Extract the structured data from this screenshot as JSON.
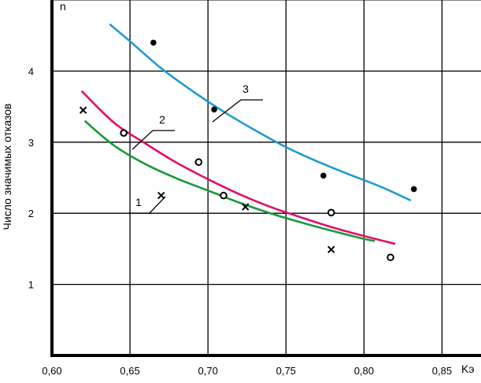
{
  "chart_data": {
    "type": "scatter",
    "title": "",
    "xlabel": "Kэ",
    "ylabel": "Число значимых отказов",
    "y_unit_label": "n",
    "xlim": [
      0.6,
      0.875
    ],
    "ylim": [
      0,
      5.0
    ],
    "x_ticks": [
      {
        "value": 0.6,
        "label": "0,60"
      },
      {
        "value": 0.65,
        "label": "0,65"
      },
      {
        "value": 0.7,
        "label": "0,70"
      },
      {
        "value": 0.75,
        "label": "0,75"
      },
      {
        "value": 0.8,
        "label": "0,80"
      },
      {
        "value": 0.85,
        "label": "0,85"
      }
    ],
    "y_ticks": [
      {
        "value": 1,
        "label": "1"
      },
      {
        "value": 2,
        "label": "2"
      },
      {
        "value": 3,
        "label": "3"
      },
      {
        "value": 4,
        "label": "4"
      }
    ],
    "grid": true,
    "points": [
      {
        "marker": "cross",
        "data": [
          [
            0.62,
            3.45
          ],
          [
            0.67,
            2.25
          ],
          [
            0.724,
            2.09
          ],
          [
            0.779,
            1.49
          ]
        ]
      },
      {
        "marker": "circle",
        "data": [
          [
            0.646,
            3.13
          ],
          [
            0.694,
            2.72
          ],
          [
            0.71,
            2.25
          ],
          [
            0.779,
            2.01
          ],
          [
            0.817,
            1.38
          ]
        ]
      },
      {
        "marker": "dot",
        "data": [
          [
            0.665,
            4.4
          ],
          [
            0.704,
            3.46
          ],
          [
            0.774,
            2.53
          ],
          [
            0.832,
            2.34
          ]
        ]
      }
    ],
    "series": [
      {
        "label": "1",
        "color": "#1a9a3a",
        "x": [
          0.621,
          0.64,
          0.66,
          0.68,
          0.7,
          0.72,
          0.74,
          0.76,
          0.78,
          0.8,
          0.807
        ],
        "y": [
          3.3,
          2.95,
          2.69,
          2.49,
          2.32,
          2.15,
          2.0,
          1.87,
          1.75,
          1.64,
          1.61
        ]
      },
      {
        "label": "2",
        "color": "#e0106a",
        "x": [
          0.619,
          0.64,
          0.66,
          0.68,
          0.7,
          0.72,
          0.74,
          0.76,
          0.78,
          0.8,
          0.82
        ],
        "y": [
          3.72,
          3.27,
          2.98,
          2.71,
          2.48,
          2.27,
          2.09,
          1.94,
          1.8,
          1.68,
          1.57
        ]
      },
      {
        "label": "3",
        "color": "#1e9ad0",
        "x": [
          0.637,
          0.65,
          0.67,
          0.69,
          0.71,
          0.73,
          0.75,
          0.77,
          0.79,
          0.81,
          0.83
        ],
        "y": [
          4.66,
          4.42,
          4.04,
          3.72,
          3.43,
          3.17,
          2.93,
          2.73,
          2.55,
          2.38,
          2.18
        ]
      }
    ]
  }
}
